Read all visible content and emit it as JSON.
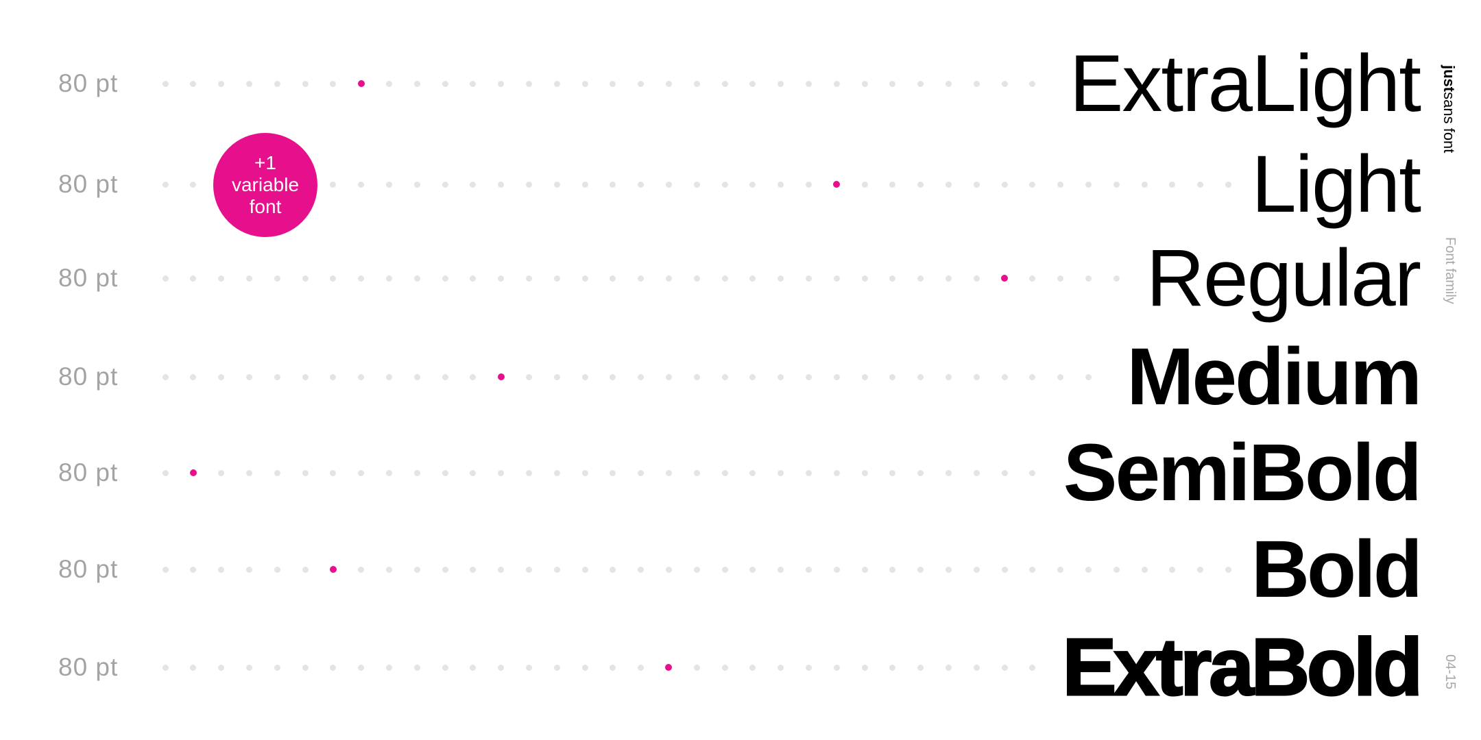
{
  "brand": {
    "bold": "just",
    "regular": "sans font"
  },
  "section_label": "Font family",
  "page_number": "04-15",
  "badge": {
    "line1": "+1",
    "line2": "variable",
    "line3": "font"
  },
  "colors": {
    "accent": "#e60f8c",
    "inactive_dot": "#e4e4e4",
    "size_label": "#a3a3a3",
    "text": "#000000"
  },
  "rows": [
    {
      "size": "80 pt",
      "weight": "ExtraLight",
      "marker_step": 7
    },
    {
      "size": "80 pt",
      "weight": "Light",
      "marker_step": 24
    },
    {
      "size": "80 pt",
      "weight": "Regular",
      "marker_step": 30
    },
    {
      "size": "80 pt",
      "weight": "Medium",
      "marker_step": 12
    },
    {
      "size": "80 pt",
      "weight": "SemiBold",
      "marker_step": 1
    },
    {
      "size": "80 pt",
      "weight": "Bold",
      "marker_step": 6
    },
    {
      "size": "80 pt",
      "weight": "ExtraBold",
      "marker_step": 18
    }
  ]
}
